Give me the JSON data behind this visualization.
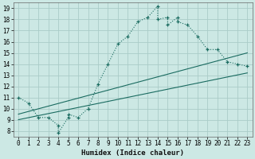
{
  "title": "",
  "xlabel": "Humidex (Indice chaleur)",
  "bg_color": "#cce8e4",
  "grid_color": "#aaccc8",
  "line_color": "#1a6b60",
  "curve_x": [
    0,
    1,
    2,
    3,
    4,
    4,
    5,
    5,
    6,
    7,
    8,
    9,
    10,
    11,
    12,
    13,
    14,
    14,
    15,
    15,
    16,
    16,
    17,
    18,
    19,
    20,
    21,
    22,
    23
  ],
  "curve_y": [
    11,
    10.5,
    9.2,
    9.2,
    8.5,
    7.8,
    9.2,
    9.5,
    9.2,
    10.0,
    12.2,
    14.0,
    15.8,
    16.5,
    17.8,
    18.2,
    19.2,
    18.0,
    18.2,
    17.5,
    18.2,
    17.8,
    17.5,
    16.5,
    15.3,
    15.3,
    14.2,
    14.0,
    13.8
  ],
  "line1_x": [
    0,
    23
  ],
  "line1_y": [
    9.5,
    15.0
  ],
  "line2_x": [
    0,
    23
  ],
  "line2_y": [
    9.0,
    13.2
  ],
  "xlim": [
    -0.5,
    23.5
  ],
  "ylim": [
    7.5,
    19.5
  ],
  "xticks": [
    0,
    1,
    2,
    3,
    4,
    5,
    6,
    7,
    8,
    9,
    10,
    11,
    12,
    13,
    14,
    15,
    16,
    17,
    18,
    19,
    20,
    21,
    22,
    23
  ],
  "yticks": [
    8,
    9,
    10,
    11,
    12,
    13,
    14,
    15,
    16,
    17,
    18,
    19
  ],
  "tick_fontsize": 5.5,
  "xlabel_fontsize": 6.5
}
